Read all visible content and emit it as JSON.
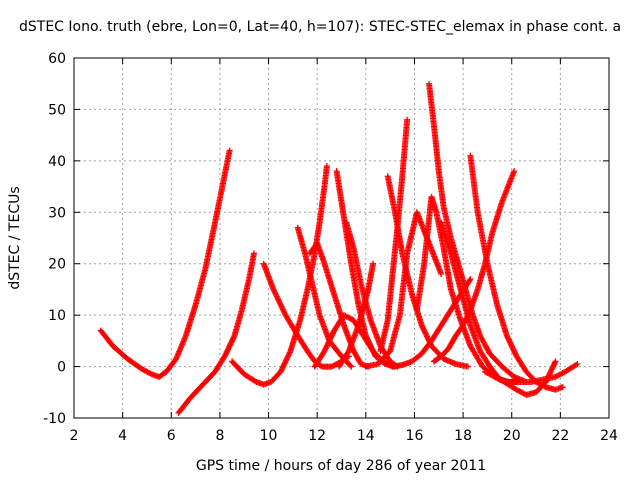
{
  "chart_data": {
    "type": "scatter",
    "title": "dSTEC Iono. truth (ebre, Lon=0, Lat=40, h=107): STEC-STEC_elemax in phase cont. a",
    "xlabel": "GPS time / hours of day 286 of year 2011",
    "ylabel": "dSTEC  / TECUs",
    "xlim": [
      2,
      24
    ],
    "ylim": [
      -10,
      60
    ],
    "xticks": [
      2,
      4,
      6,
      8,
      10,
      12,
      14,
      16,
      18,
      20,
      22,
      24
    ],
    "yticks": [
      -10,
      0,
      10,
      20,
      30,
      40,
      50,
      60
    ],
    "xtick_labels": [
      "2",
      "4",
      "6",
      "8",
      "10",
      "12",
      "14",
      "16",
      "18",
      "20",
      "22",
      "24"
    ],
    "ytick_labels": [
      "-10",
      "0",
      "10",
      "20",
      "30",
      "40",
      "50",
      "60"
    ],
    "grid": true,
    "marker": "+",
    "color": "#ff0000",
    "series": [
      {
        "x": [
          3.1,
          3.6,
          4.2,
          4.8,
          5.2,
          5.5,
          5.8,
          6.2,
          6.6,
          7.0,
          7.4,
          7.8,
          8.1,
          8.4
        ],
        "y": [
          7.0,
          4.0,
          1.5,
          -0.5,
          -1.5,
          -2.0,
          -1.0,
          1.5,
          6.0,
          12.0,
          19.0,
          28.0,
          35.0,
          42.0
        ]
      },
      {
        "x": [
          6.3,
          6.8,
          7.3,
          7.8,
          8.2,
          8.6,
          8.9,
          9.2,
          9.4
        ],
        "y": [
          -9.0,
          -6.0,
          -3.5,
          -1.0,
          2.0,
          6.0,
          11.0,
          17.0,
          22.0
        ]
      },
      {
        "x": [
          8.5,
          9.0,
          9.5,
          9.8,
          10.1,
          10.5,
          10.9,
          11.3,
          11.6,
          11.9,
          12.1,
          12.3,
          12.4
        ],
        "y": [
          1.0,
          -1.5,
          -3.0,
          -3.5,
          -3.0,
          -1.0,
          3.0,
          9.0,
          15.0,
          22.0,
          28.0,
          35.0,
          39.0
        ]
      },
      {
        "x": [
          9.8,
          10.2,
          10.7,
          11.2,
          11.6,
          11.9,
          12.2,
          12.6,
          13.0,
          13.3
        ],
        "y": [
          20.0,
          15.0,
          10.0,
          6.0,
          3.0,
          1.0,
          0.0,
          0.0,
          1.0,
          2.0
        ]
      },
      {
        "x": [
          11.2,
          11.5,
          11.8,
          12.1,
          12.5,
          13.0,
          13.4
        ],
        "y": [
          27.0,
          22.0,
          16.0,
          10.0,
          5.0,
          2.0,
          0.0
        ]
      },
      {
        "x": [
          11.7,
          12.0,
          12.3,
          12.7,
          13.1,
          13.5,
          13.8,
          14.1
        ],
        "y": [
          22.0,
          24.0,
          20.0,
          14.0,
          8.0,
          3.0,
          0.5,
          0.0
        ]
      },
      {
        "x": [
          12.8,
          13.1,
          13.4,
          13.7,
          14.0,
          14.4,
          14.8,
          15.2
        ],
        "y": [
          38.0,
          29.0,
          20.0,
          12.0,
          6.0,
          2.0,
          0.5,
          0.0
        ]
      },
      {
        "x": [
          13.2,
          13.5,
          13.8,
          14.2,
          14.6,
          15.0,
          15.3
        ],
        "y": [
          28.0,
          23.0,
          16.0,
          9.0,
          4.0,
          1.0,
          0.0
        ]
      },
      {
        "x": [
          12.9,
          13.3,
          13.7,
          14.1,
          14.3
        ],
        "y": [
          0.0,
          3.0,
          8.0,
          15.0,
          20.0
        ]
      },
      {
        "x": [
          14.0,
          14.5,
          15.0,
          15.4,
          15.7,
          16.1,
          16.6,
          17.1
        ],
        "y": [
          0.0,
          0.5,
          3.0,
          10.0,
          22.0,
          30.0,
          24.0,
          18.0
        ]
      },
      {
        "x": [
          14.9,
          15.2,
          15.5,
          15.9,
          16.3,
          16.7,
          17.2,
          17.7,
          18.2
        ],
        "y": [
          37.0,
          30.0,
          22.0,
          14.0,
          8.0,
          4.0,
          1.5,
          0.5,
          0.0
        ]
      },
      {
        "x": [
          14.6,
          14.9,
          15.1,
          15.3,
          15.5,
          15.7
        ],
        "y": [
          3.0,
          9.0,
          18.0,
          27.0,
          37.0,
          48.0
        ]
      },
      {
        "x": [
          16.1,
          16.4,
          16.7,
          16.9,
          17.2,
          17.5,
          17.9,
          18.3,
          18.8,
          19.3,
          19.8,
          20.2
        ],
        "y": [
          11.0,
          20.0,
          33.0,
          30.0,
          23.0,
          15.0,
          9.0,
          4.0,
          0.0,
          -2.0,
          -3.0,
          -3.0
        ]
      },
      {
        "x": [
          16.6,
          16.8,
          17.0,
          17.2,
          17.5,
          17.8,
          18.1,
          18.4,
          18.7,
          19.1,
          19.6,
          20.1,
          20.6
        ],
        "y": [
          55.0,
          47.0,
          38.0,
          31.0,
          25.0,
          20.0,
          15.0,
          10.0,
          6.0,
          2.5,
          0.0,
          -2.0,
          -3.0
        ]
      },
      {
        "x": [
          16.8,
          17.1,
          17.4,
          17.7,
          18.0,
          18.3,
          18.6,
          18.9,
          19.2,
          19.6,
          20.1
        ],
        "y": [
          1.0,
          2.0,
          3.5,
          6.0,
          8.0,
          11.0,
          15.0,
          20.0,
          26.0,
          32.0,
          38.0
        ]
      },
      {
        "x": [
          18.3,
          18.6,
          19.0,
          19.4,
          19.8,
          20.2,
          20.6,
          21.0,
          21.4,
          21.8,
          22.1
        ],
        "y": [
          41.0,
          30.0,
          20.0,
          12.0,
          6.0,
          2.0,
          -1.0,
          -3.0,
          -4.0,
          -4.5,
          -4.0
        ]
      },
      {
        "x": [
          18.9,
          19.3,
          19.7,
          20.2,
          20.6,
          21.0,
          21.4,
          21.8
        ],
        "y": [
          -1.0,
          -2.0,
          -3.0,
          -4.5,
          -5.5,
          -5.0,
          -3.0,
          1.0
        ]
      },
      {
        "x": [
          17.1,
          17.5,
          17.9,
          18.3,
          18.7,
          19.1,
          19.5,
          19.9,
          20.3
        ],
        "y": [
          28.0,
          22.0,
          15.0,
          8.0,
          3.0,
          0.0,
          -2.5,
          -3.0,
          -3.0
        ]
      },
      {
        "x": [
          20.3,
          20.8,
          21.3,
          21.8,
          22.2,
          22.7
        ],
        "y": [
          -3.0,
          -3.0,
          -2.5,
          -2.0,
          -1.0,
          0.5
        ]
      },
      {
        "x": [
          15.1,
          15.5,
          15.9,
          16.3,
          16.7,
          17.1,
          17.5,
          17.9,
          18.3
        ],
        "y": [
          0.0,
          0.3,
          1.0,
          2.5,
          5.0,
          8.0,
          11.0,
          14.0,
          17.0
        ]
      },
      {
        "x": [
          11.9,
          12.3,
          12.7,
          13.1,
          13.5,
          13.9,
          14.3,
          14.7,
          15.1
        ],
        "y": [
          0.0,
          3.0,
          7.0,
          10.0,
          9.0,
          6.0,
          3.0,
          1.0,
          0.0
        ]
      }
    ]
  }
}
